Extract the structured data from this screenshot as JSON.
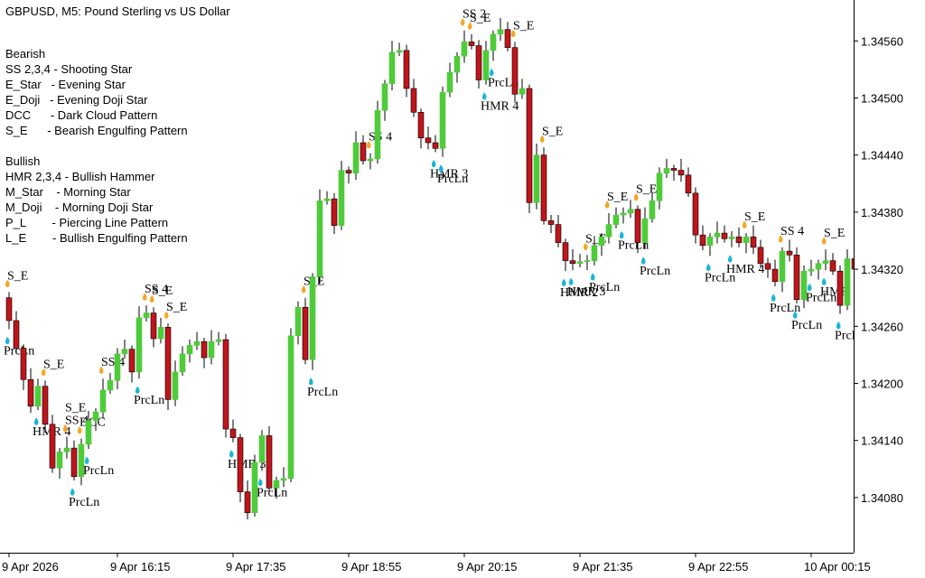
{
  "chart_data": {
    "type": "candlestick",
    "title": "GBPUSD, M5:  Pound Sterling vs US Dollar",
    "legend": {
      "bearish": {
        "title": "Bearish",
        "items": [
          "SS 2,3,4 - Shooting Star",
          "E_Star   - Evening Star",
          "E_Doji   - Evening Doji Star",
          "DCC      - Dark Cloud Pattern",
          "S_E      - Bearish Engulfing Pattern"
        ]
      },
      "bullish": {
        "title": "Bullish",
        "items": [
          "HMR 2,3,4 - Bullish Hammer",
          "M_Star    - Morning Star",
          "M_Doji    - Morning Doji Star",
          "P_L        - Piercing Line Pattern",
          "L_E        - Bullish Engulfing Pattern"
        ]
      }
    },
    "categories": [
      "9 Apr 2026",
      null,
      null,
      null,
      null,
      null,
      null,
      null,
      null,
      null,
      null,
      null,
      null,
      null,
      null,
      "9 Apr 16:15",
      null,
      null,
      null,
      null,
      null,
      null,
      null,
      null,
      null,
      null,
      null,
      null,
      null,
      null,
      null,
      "9 Apr 17:35",
      null,
      null,
      null,
      null,
      null,
      null,
      null,
      null,
      null,
      null,
      null,
      null,
      null,
      null,
      null,
      "9 Apr 18:55",
      null,
      null,
      null,
      null,
      null,
      null,
      null,
      null,
      null,
      null,
      null,
      null,
      null,
      null,
      null,
      "9 Apr 20:15",
      null,
      null,
      null,
      null,
      null,
      null,
      null,
      null,
      null,
      null,
      null,
      null,
      null,
      null,
      null,
      "9 Apr 21:35",
      null,
      null,
      null,
      null,
      null,
      null,
      null,
      null,
      null,
      null,
      null,
      null,
      null,
      null,
      null,
      "9 Apr 22:55",
      null,
      null,
      null,
      null,
      null,
      null,
      null,
      null,
      null,
      null,
      null,
      null,
      null,
      null,
      null,
      "10 Apr 00:15",
      null,
      null,
      null,
      null,
      null,
      null
    ],
    "open": [
      1.3429,
      1.34266,
      1.34237,
      1.34204,
      1.34176,
      1.34197,
      1.34157,
      1.34111,
      1.34128,
      1.34132,
      1.34102,
      1.34136,
      1.34161,
      1.3417,
      1.34193,
      1.34203,
      1.34231,
      1.34236,
      1.34212,
      1.34269,
      1.34274,
      1.34247,
      1.34259,
      1.34183,
      1.34212,
      1.34231,
      1.3424,
      1.34244,
      1.34227,
      1.34244,
      1.34246,
      1.34152,
      1.34143,
      1.34086,
      1.34064,
      1.34117,
      1.34145,
      1.3409,
      1.34098,
      1.341,
      1.3425,
      1.3428,
      1.34225,
      1.34312,
      1.34392,
      1.34394,
      1.34366,
      1.34424,
      1.34421,
      1.34453,
      1.34434,
      1.34436,
      1.34487,
      1.34515,
      1.34548,
      1.3455,
      1.3451,
      1.34485,
      1.34458,
      1.34453,
      1.34447,
      1.34506,
      1.34527,
      1.34544,
      1.34559,
      1.34555,
      1.34519,
      1.3455,
      1.34567,
      1.34572,
      1.34553,
      1.34504,
      1.3451,
      1.3439,
      1.3444,
      1.34371,
      1.34367,
      1.34348,
      1.34329,
      1.34326,
      1.34328,
      1.34329,
      1.34345,
      1.34354,
      1.34367,
      1.34377,
      1.34379,
      1.34383,
      1.34348,
      1.34373,
      1.34392,
      1.34421,
      1.34426,
      1.34424,
      1.34419,
      1.344,
      1.34356,
      1.34345,
      1.34354,
      1.34358,
      1.34352,
      1.34354,
      1.34348,
      1.34354,
      1.34343,
      1.34326,
      1.3432,
      1.34307,
      1.34339,
      1.34335,
      1.34288,
      1.34318,
      1.3432,
      1.34326,
      1.34329,
      1.34318,
      1.34282,
      1.34331
    ],
    "high": [
      1.34296,
      1.34276,
      1.34241,
      1.34216,
      1.34205,
      1.34203,
      1.34167,
      1.34132,
      1.34144,
      1.3414,
      1.34142,
      1.34171,
      1.34174,
      1.34205,
      1.34211,
      1.34237,
      1.34246,
      1.3424,
      1.34281,
      1.34282,
      1.3428,
      1.34269,
      1.34263,
      1.34224,
      1.34239,
      1.34246,
      1.34254,
      1.34248,
      1.34256,
      1.34254,
      1.34252,
      1.34162,
      1.34147,
      1.34098,
      1.34125,
      1.34151,
      1.34155,
      1.34102,
      1.34112,
      1.34258,
      1.34286,
      1.3429,
      1.34316,
      1.34404,
      1.34402,
      1.344,
      1.34434,
      1.34428,
      1.34465,
      1.34461,
      1.34442,
      1.34497,
      1.34519,
      1.3456,
      1.34558,
      1.34556,
      1.3452,
      1.34489,
      1.3447,
      1.34461,
      1.34512,
      1.34537,
      1.34548,
      1.34571,
      1.34567,
      1.34561,
      1.3456,
      1.34571,
      1.34584,
      1.3458,
      1.34559,
      1.3452,
      1.34514,
      1.34452,
      1.34448,
      1.34377,
      1.34377,
      1.34352,
      1.34341,
      1.34336,
      1.34335,
      1.34355,
      1.34358,
      1.34379,
      1.34385,
      1.34385,
      1.34393,
      1.34387,
      1.34385,
      1.344,
      1.34427,
      1.34436,
      1.3443,
      1.34436,
      1.34427,
      1.34406,
      1.34366,
      1.34358,
      1.3437,
      1.34366,
      1.3436,
      1.34364,
      1.34358,
      1.34366,
      1.34351,
      1.34332,
      1.3433,
      1.34343,
      1.34351,
      1.34343,
      1.34324,
      1.3433,
      1.3433,
      1.34341,
      1.34337,
      1.34324,
      1.34341,
      1.34335
    ],
    "low": [
      1.34257,
      1.34232,
      1.34193,
      1.34169,
      1.34172,
      1.34148,
      1.34106,
      1.341,
      1.34121,
      1.34098,
      1.34093,
      1.34131,
      1.3415,
      1.34163,
      1.34189,
      1.34194,
      1.34226,
      1.34201,
      1.34205,
      1.34265,
      1.34238,
      1.34242,
      1.34172,
      1.34176,
      1.34208,
      1.34222,
      1.34235,
      1.34216,
      1.3422,
      1.3424,
      1.34143,
      1.34138,
      1.34075,
      1.34057,
      1.3406,
      1.34108,
      1.34085,
      1.34079,
      1.34091,
      1.34096,
      1.34241,
      1.3422,
      1.34214,
      1.34305,
      1.34388,
      1.34357,
      1.34361,
      1.3441,
      1.34414,
      1.3443,
      1.34425,
      1.34431,
      1.34476,
      1.34508,
      1.34544,
      1.34501,
      1.3448,
      1.34447,
      1.34446,
      1.34443,
      1.34438,
      1.34501,
      1.34516,
      1.34537,
      1.34551,
      1.3451,
      1.34514,
      1.34539,
      1.3456,
      1.34549,
      1.34495,
      1.34499,
      1.34379,
      1.34383,
      1.34367,
      1.34358,
      1.34343,
      1.34318,
      1.34319,
      1.34322,
      1.34319,
      1.34324,
      1.34334,
      1.34347,
      1.34363,
      1.34368,
      1.34374,
      1.34337,
      1.34341,
      1.34369,
      1.34383,
      1.34416,
      1.34413,
      1.34412,
      1.34396,
      1.34347,
      1.3434,
      1.34334,
      1.34347,
      1.34348,
      1.34343,
      1.34343,
      1.34337,
      1.34336,
      1.34322,
      1.34311,
      1.34302,
      1.34296,
      1.34328,
      1.34284,
      1.34279,
      1.34313,
      1.34309,
      1.34319,
      1.34314,
      1.34273,
      1.34277,
      1.34309
    ],
    "close": [
      1.34266,
      1.34237,
      1.34204,
      1.34176,
      1.34197,
      1.34157,
      1.34111,
      1.34128,
      1.34132,
      1.34102,
      1.34136,
      1.34161,
      1.3417,
      1.34193,
      1.34203,
      1.34231,
      1.34236,
      1.34212,
      1.34269,
      1.34274,
      1.34247,
      1.34259,
      1.34183,
      1.34212,
      1.34231,
      1.3424,
      1.34244,
      1.34227,
      1.34244,
      1.34246,
      1.34152,
      1.34143,
      1.34086,
      1.34064,
      1.34117,
      1.34145,
      1.3409,
      1.34098,
      1.341,
      1.3425,
      1.3428,
      1.34225,
      1.34312,
      1.34392,
      1.34394,
      1.34366,
      1.34424,
      1.34421,
      1.34453,
      1.34434,
      1.34436,
      1.34487,
      1.34515,
      1.34548,
      1.3455,
      1.3451,
      1.34485,
      1.34458,
      1.34453,
      1.34447,
      1.34506,
      1.34527,
      1.34544,
      1.34559,
      1.34555,
      1.34519,
      1.3455,
      1.34567,
      1.34572,
      1.34553,
      1.34504,
      1.3451,
      1.3439,
      1.3444,
      1.34371,
      1.34367,
      1.34348,
      1.34329,
      1.34326,
      1.34328,
      1.34329,
      1.34345,
      1.34354,
      1.34367,
      1.34377,
      1.34379,
      1.34383,
      1.34348,
      1.34373,
      1.34392,
      1.34421,
      1.34426,
      1.34424,
      1.34419,
      1.344,
      1.34356,
      1.34345,
      1.34354,
      1.34358,
      1.34352,
      1.34354,
      1.34348,
      1.34354,
      1.34343,
      1.34326,
      1.3432,
      1.34307,
      1.34339,
      1.34335,
      1.34288,
      1.34318,
      1.3432,
      1.34326,
      1.34329,
      1.34318,
      1.34282,
      1.34331,
      1.3432
    ],
    "bearish_labels": [
      [
        "S_E"
      ],
      null,
      null,
      null,
      null,
      [
        "S_E"
      ],
      null,
      null,
      [
        "S_E",
        "SS 4"
      ],
      null,
      [
        "DCC"
      ],
      null,
      null,
      [
        "SS 4"
      ],
      null,
      null,
      null,
      null,
      null,
      [
        "SS 4"
      ],
      [
        "S_E"
      ],
      null,
      [
        "S_E"
      ],
      null,
      null,
      null,
      null,
      null,
      null,
      null,
      null,
      null,
      null,
      null,
      null,
      null,
      null,
      null,
      null,
      null,
      null,
      [
        "S_E"
      ],
      null,
      null,
      null,
      null,
      null,
      null,
      null,
      null,
      [
        "SS 4"
      ],
      null,
      null,
      null,
      null,
      null,
      null,
      null,
      null,
      null,
      null,
      null,
      null,
      [
        "SS 2"
      ],
      [
        "S_E"
      ],
      null,
      null,
      null,
      null,
      null,
      [
        "S_E"
      ],
      null,
      null,
      null,
      [
        "S_E"
      ],
      null,
      null,
      null,
      null,
      null,
      [
        "S_E"
      ],
      null,
      null,
      [
        "S_E"
      ],
      null,
      null,
      null,
      [
        "S_E"
      ],
      null,
      null,
      null,
      null,
      null,
      null,
      null,
      null,
      null,
      null,
      null,
      null,
      null,
      null,
      [
        "S_E"
      ],
      null,
      null,
      null,
      null,
      [
        "SS 4"
      ],
      null,
      null,
      null,
      null,
      null,
      [
        "S_E"
      ],
      null,
      null,
      null,
      null
    ],
    "bullish_labels": [
      [
        "PrcLn"
      ],
      null,
      null,
      null,
      [
        "HMR 4"
      ],
      null,
      null,
      null,
      null,
      [
        "PrcLn"
      ],
      null,
      [
        "PrcLn"
      ],
      null,
      null,
      null,
      null,
      null,
      null,
      [
        "PrcLn"
      ],
      null,
      null,
      null,
      null,
      null,
      null,
      null,
      null,
      null,
      null,
      null,
      null,
      [
        "HMR 3"
      ],
      null,
      null,
      null,
      [
        "PrcLn"
      ],
      null,
      null,
      null,
      null,
      null,
      null,
      [
        "PrcLn"
      ],
      null,
      null,
      null,
      null,
      null,
      null,
      null,
      null,
      null,
      null,
      null,
      null,
      null,
      null,
      null,
      null,
      [
        "HMR 3"
      ],
      [
        "PrcLn"
      ],
      null,
      null,
      null,
      null,
      null,
      [
        "HMR 4"
      ],
      [
        "PrcLn"
      ],
      null,
      null,
      null,
      null,
      null,
      null,
      null,
      null,
      null,
      [
        "HMR 2"
      ],
      [
        "HMR 3"
      ],
      null,
      null,
      [
        "PrcLn"
      ],
      null,
      null,
      null,
      [
        "PrcLn"
      ],
      null,
      null,
      [
        "PrcLn"
      ],
      null,
      null,
      null,
      null,
      null,
      null,
      null,
      null,
      [
        "PrcLn"
      ],
      null,
      null,
      [
        "HMR 4"
      ],
      null,
      null,
      null,
      null,
      null,
      [
        "PrcLn"
      ],
      null,
      null,
      [
        "PrcLn"
      ],
      null,
      [
        "PrcLn"
      ],
      null,
      [
        "HMR"
      ],
      null,
      [
        "PrcLn"
      ],
      null,
      null
    ],
    "up_color": "#4fcb3a",
    "down_color": "#c0151b",
    "bearish_label_color": "#e8101a",
    "bullish_label_color": "#1414d8",
    "ylim": [
      1.34022,
      1.34603
    ],
    "yticks": [
      {
        "value": 1.3408,
        "label": "1.34080"
      },
      {
        "value": 1.3414,
        "label": "1.34140"
      },
      {
        "value": 1.342,
        "label": "1.34200"
      },
      {
        "value": 1.3426,
        "label": "1.34260"
      },
      {
        "value": 1.3432,
        "label": "1.34320"
      },
      {
        "value": 1.3438,
        "label": "1.34380"
      },
      {
        "value": 1.3444,
        "label": "1.34440"
      },
      {
        "value": 1.345,
        "label": "1.34500"
      },
      {
        "value": 1.3456,
        "label": "1.34560"
      }
    ]
  }
}
